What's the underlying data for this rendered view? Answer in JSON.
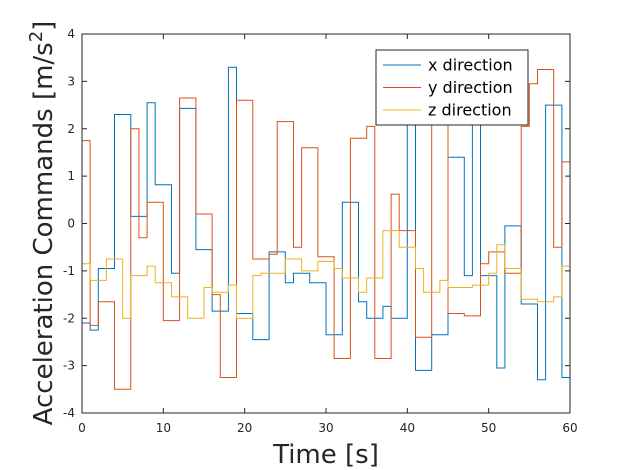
{
  "chart_data": {
    "type": "line",
    "step": true,
    "xlabel": "Time [s]",
    "ylabel_main": "Acceleration Commands [m/s",
    "ylabel_sup": "2",
    "ylabel_end": "]",
    "xlim": [
      0,
      60
    ],
    "ylim": [
      -4,
      4
    ],
    "xticks": [
      0,
      10,
      20,
      30,
      40,
      50,
      60
    ],
    "yticks": [
      -4,
      -3,
      -2,
      -1,
      0,
      1,
      2,
      3,
      4
    ],
    "grid": false,
    "legend_position": "top-right",
    "series": [
      {
        "name": "x direction",
        "color": "#0072BD",
        "x": [
          0,
          1,
          2,
          4,
          6,
          8,
          9,
          11,
          12,
          14,
          16,
          18,
          19,
          21,
          23,
          25,
          26,
          28,
          30,
          32,
          34,
          35,
          37,
          38,
          40,
          41,
          43,
          45,
          47,
          48,
          49,
          51,
          52,
          54,
          56,
          57,
          59,
          60
        ],
        "y": [
          -2.1,
          -2.25,
          -0.95,
          2.3,
          0.15,
          2.55,
          0.82,
          -1.05,
          2.43,
          -0.55,
          -1.85,
          3.3,
          -1.9,
          -2.45,
          -0.6,
          -1.25,
          -1.05,
          -1.25,
          -2.35,
          0.45,
          -1.65,
          -2.0,
          -1.75,
          -2.0,
          2.15,
          -3.1,
          -2.35,
          1.4,
          -1.1,
          2.15,
          -1.1,
          -3.05,
          -0.05,
          -1.7,
          -3.3,
          2.5,
          -3.25,
          -3.6
        ]
      },
      {
        "name": "y direction",
        "color": "#D95319",
        "x": [
          0,
          1,
          2,
          4,
          6,
          7,
          8,
          10,
          12,
          14,
          16,
          17,
          19,
          21,
          23,
          24,
          26,
          27,
          29,
          31,
          33,
          35,
          36,
          38,
          39,
          41,
          43,
          45,
          47,
          49,
          50,
          52,
          54,
          55,
          56,
          58,
          59,
          60
        ],
        "y": [
          1.75,
          -2.15,
          -1.65,
          -3.5,
          2.0,
          -0.3,
          0.45,
          -2.05,
          2.65,
          0.2,
          -1.5,
          -3.25,
          2.6,
          -0.75,
          -0.65,
          2.15,
          -0.5,
          1.6,
          -0.7,
          -2.85,
          1.8,
          2.05,
          -2.85,
          0.62,
          -0.15,
          -2.4,
          2.55,
          -1.9,
          -1.95,
          -0.85,
          -0.6,
          -1.05,
          2.05,
          2.95,
          3.25,
          -0.5,
          1.3,
          0.25
        ]
      },
      {
        "name": "z direction",
        "color": "#EDB120",
        "x": [
          0,
          1,
          3,
          5,
          6,
          8,
          9,
          11,
          13,
          15,
          16,
          18,
          19,
          21,
          22,
          25,
          27,
          29,
          31,
          32,
          34,
          35,
          37,
          39,
          41,
          42,
          44,
          45,
          47,
          48,
          50,
          51,
          52,
          54,
          56,
          58,
          59,
          60
        ],
        "y": [
          -0.85,
          -1.2,
          -0.75,
          -2.0,
          -1.1,
          -0.9,
          -1.25,
          -1.55,
          -2.0,
          -1.35,
          -1.45,
          -1.3,
          -2.0,
          -1.1,
          -1.05,
          -0.75,
          -1.0,
          -0.8,
          -0.95,
          -1.15,
          -1.45,
          -1.15,
          -0.15,
          -0.5,
          -0.95,
          -1.45,
          -1.2,
          -1.35,
          -1.35,
          -1.3,
          -1.05,
          -0.45,
          -0.95,
          -1.6,
          -1.65,
          -1.55,
          -0.9,
          -1.6
        ]
      }
    ]
  }
}
